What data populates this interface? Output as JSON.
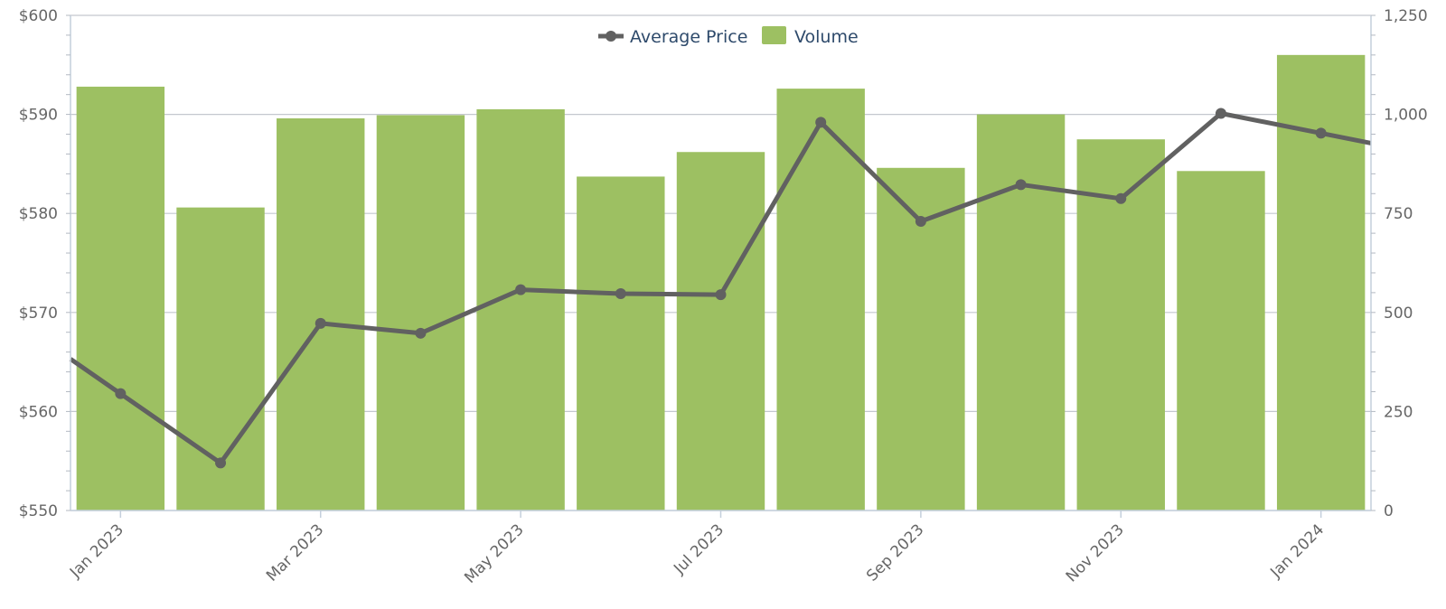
{
  "chart_data": {
    "type": "bar",
    "x": [
      "2023-01",
      "2023-02",
      "2023-03",
      "2023-04",
      "2023-05",
      "2023-06",
      "2023-07",
      "2023-08",
      "2023-09",
      "2023-10",
      "2023-11",
      "2023-12",
      "2024-01"
    ],
    "x_tick_labels": [
      "Jan 2023",
      "Mar 2023",
      "May 2023",
      "Jul 2023",
      "Sep 2023",
      "Nov 2023",
      "Jan 2024"
    ],
    "x_tick_months": [
      "2023-01",
      "2023-03",
      "2023-05",
      "2023-07",
      "2023-09",
      "2023-11",
      "2024-01"
    ],
    "series": [
      {
        "name": "Volume",
        "type": "bar",
        "axis": "right",
        "color": "#9dc062",
        "values": [
          1070,
          765,
          990,
          998,
          1013,
          843,
          905,
          1065,
          865,
          1000,
          937,
          857,
          1150
        ]
      },
      {
        "name": "Average Price",
        "type": "line",
        "axis": "left",
        "color": "#616161",
        "values": [
          561.8,
          554.8,
          568.9,
          567.9,
          572.3,
          571.9,
          571.8,
          589.2,
          579.2,
          582.9,
          581.5,
          590.1,
          588.1
        ]
      }
    ],
    "left_axis": {
      "ylim": [
        550,
        600
      ],
      "tick_labels": [
        "$550",
        "$560",
        "$570",
        "$580",
        "$590",
        "$600"
      ]
    },
    "right_axis": {
      "ylim": [
        0,
        1250
      ],
      "tick_labels": [
        "0",
        "250",
        "500",
        "750",
        "1,000",
        "1,250"
      ]
    },
    "legend": {
      "placement": "top-center",
      "entries": [
        "Average Price",
        "Volume"
      ]
    },
    "grid": true
  }
}
